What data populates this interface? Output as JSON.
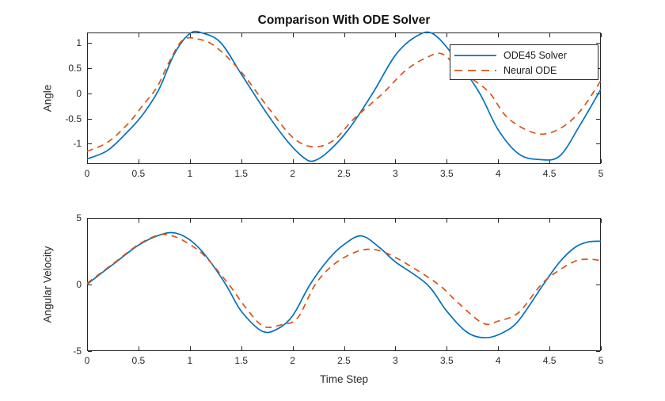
{
  "figure": {
    "background": "#ffffff",
    "axes_color": "#262626",
    "text_color": "#2b2b2b"
  },
  "chart_data": [
    {
      "type": "line",
      "title": "Comparison With ODE Solver",
      "xlabel": "",
      "ylabel": "Angle",
      "xlim": [
        0,
        5
      ],
      "ylim": [
        -1.4,
        1.2
      ],
      "grid": false,
      "xticks": [
        0,
        0.5,
        1,
        1.5,
        2,
        2.5,
        3,
        3.5,
        4,
        4.5,
        5
      ],
      "xtick_labels": [
        "0",
        "0.5",
        "1",
        "1.5",
        "2",
        "2.5",
        "3",
        "3.5",
        "4",
        "4.5",
        "5"
      ],
      "yticks": [
        -1,
        -0.5,
        0,
        0.5,
        1
      ],
      "ytick_labels": [
        "-1",
        "-0.5",
        "0",
        "0.5",
        "1"
      ],
      "legend": {
        "position": "northeast",
        "entries": [
          {
            "label": "ODE45 Solver",
            "color": "#0072BD",
            "style": "solid"
          },
          {
            "label": "Neural ODE",
            "color": "#D95319",
            "style": "dashed"
          }
        ]
      },
      "series": [
        {
          "name": "ODE45 Solver",
          "color": "#0072BD",
          "style": "solid",
          "x": [
            0,
            0.2,
            0.4,
            0.55,
            0.7,
            0.85,
            1.0,
            1.12,
            1.3,
            1.5,
            1.75,
            1.95,
            2.1,
            2.2,
            2.35,
            2.55,
            2.78,
            3.0,
            3.2,
            3.37,
            3.6,
            3.82,
            4.0,
            4.2,
            4.4,
            4.6,
            4.8,
            5.0
          ],
          "y": [
            -1.3,
            -1.13,
            -0.75,
            -0.4,
            0.08,
            0.78,
            1.18,
            1.19,
            1.0,
            0.38,
            -0.4,
            -0.95,
            -1.26,
            -1.34,
            -1.15,
            -0.7,
            0.0,
            0.75,
            1.12,
            1.17,
            0.65,
            0.0,
            -0.72,
            -1.2,
            -1.31,
            -1.24,
            -0.62,
            0.08
          ]
        },
        {
          "name": "Neural ODE",
          "color": "#D95319",
          "style": "dashed",
          "x": [
            0,
            0.2,
            0.4,
            0.55,
            0.68,
            0.8,
            0.93,
            1.08,
            1.25,
            1.5,
            1.75,
            2.0,
            2.2,
            2.4,
            2.6,
            2.88,
            3.1,
            3.3,
            3.45,
            3.6,
            3.75,
            3.92,
            4.1,
            4.38,
            4.6,
            4.8,
            5.0
          ],
          "y": [
            -1.15,
            -0.97,
            -0.6,
            -0.22,
            0.12,
            0.62,
            1.05,
            1.07,
            0.92,
            0.42,
            -0.25,
            -0.87,
            -1.06,
            -0.93,
            -0.5,
            0.0,
            0.45,
            0.7,
            0.78,
            0.52,
            0.28,
            0.0,
            -0.5,
            -0.8,
            -0.7,
            -0.35,
            0.25
          ]
        }
      ]
    },
    {
      "type": "line",
      "title": "",
      "xlabel": "Time Step",
      "ylabel": "Angular Velocity",
      "xlim": [
        0,
        5
      ],
      "ylim": [
        -5,
        5
      ],
      "grid": false,
      "xticks": [
        0,
        0.5,
        1,
        1.5,
        2,
        2.5,
        3,
        3.5,
        4,
        4.5,
        5
      ],
      "xtick_labels": [
        "0",
        "0.5",
        "1",
        "1.5",
        "2",
        "2.5",
        "3",
        "3.5",
        "4",
        "4.5",
        "5"
      ],
      "yticks": [
        -5,
        0,
        5
      ],
      "ytick_labels": [
        "-5",
        "0",
        "5"
      ],
      "series": [
        {
          "name": "ODE45 Solver",
          "color": "#0072BD",
          "style": "solid",
          "x": [
            0,
            0.25,
            0.5,
            0.7,
            0.85,
            1.0,
            1.15,
            1.35,
            1.5,
            1.7,
            1.85,
            2.0,
            2.17,
            2.35,
            2.5,
            2.67,
            2.85,
            3.0,
            3.31,
            3.5,
            3.7,
            3.88,
            4.05,
            4.2,
            4.44,
            4.6,
            4.75,
            4.88,
            5.0
          ],
          "y": [
            0.02,
            1.5,
            2.95,
            3.7,
            3.88,
            3.35,
            2.2,
            0.0,
            -2.0,
            -3.5,
            -3.35,
            -2.35,
            0.0,
            1.9,
            3.0,
            3.65,
            2.75,
            1.7,
            0.0,
            -2.0,
            -3.6,
            -4.0,
            -3.6,
            -2.7,
            0.0,
            1.7,
            2.8,
            3.2,
            3.25
          ]
        },
        {
          "name": "Neural ODE",
          "color": "#D95319",
          "style": "dashed",
          "x": [
            0,
            0.25,
            0.5,
            0.7,
            0.85,
            1.0,
            1.15,
            1.38,
            1.55,
            1.72,
            1.9,
            2.05,
            2.22,
            2.4,
            2.6,
            2.75,
            2.9,
            3.1,
            3.42,
            3.6,
            3.85,
            4.0,
            4.2,
            4.42,
            4.58,
            4.75,
            4.88,
            5.0
          ],
          "y": [
            0.1,
            1.55,
            3.0,
            3.72,
            3.6,
            3.0,
            2.1,
            0.0,
            -1.8,
            -3.15,
            -3.0,
            -2.5,
            0.0,
            1.5,
            2.4,
            2.65,
            2.4,
            1.6,
            0.0,
            -1.3,
            -2.9,
            -2.75,
            -2.1,
            0.0,
            1.0,
            1.75,
            1.9,
            1.8
          ]
        }
      ]
    }
  ]
}
